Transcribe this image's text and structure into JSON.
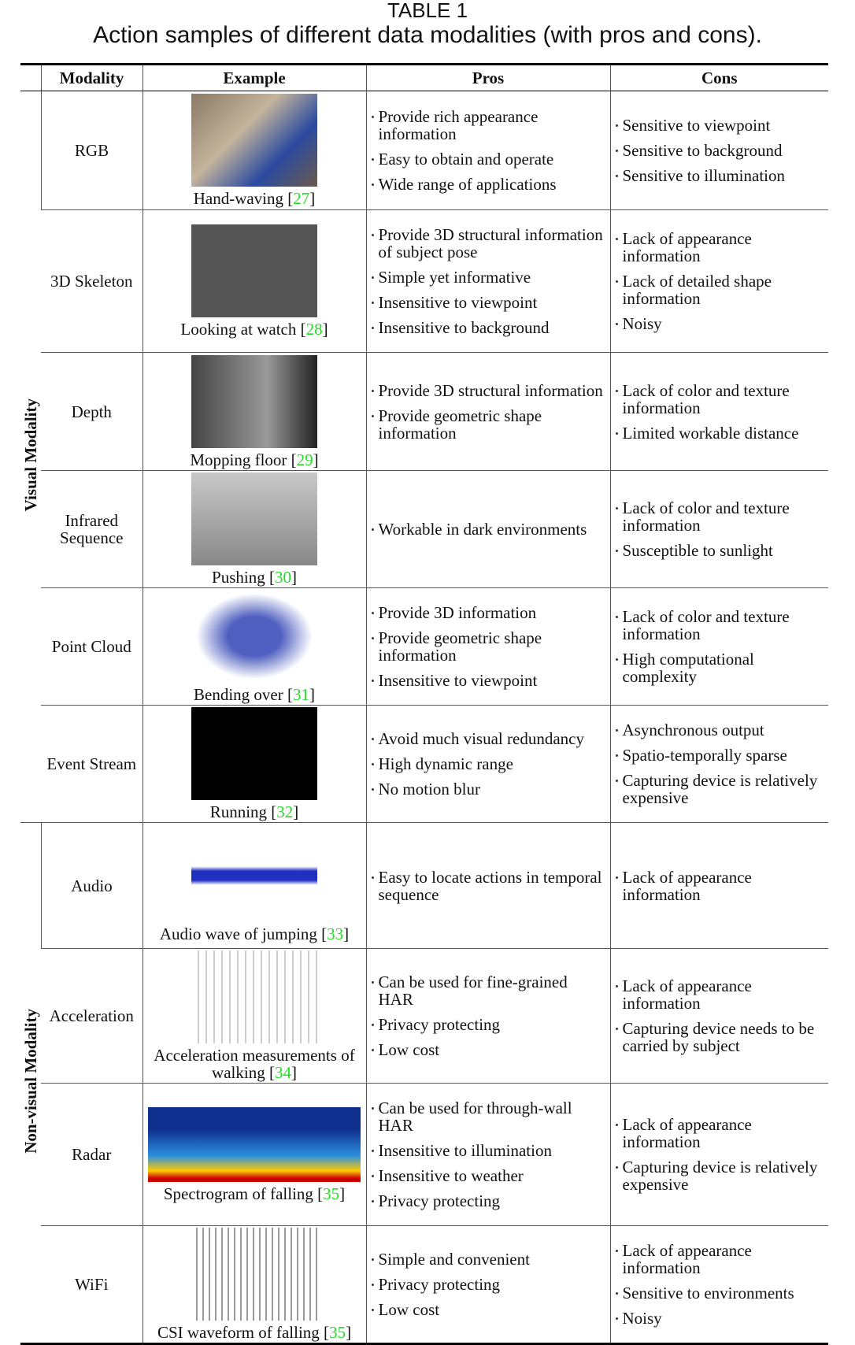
{
  "header": {
    "label": "TABLE 1",
    "title": "Action samples of different data modalities (with pros and cons)."
  },
  "table": {
    "columns": [
      "Modality",
      "Example",
      "Pros",
      "Cons"
    ],
    "groups": [
      {
        "label": "Visual Modality",
        "rows": [
          {
            "modality": "RGB",
            "caption": [
              "Hand-waving [",
              "27",
              "]"
            ],
            "pros": [
              "Provide rich appearance information",
              "Easy to obtain and operate",
              "Wide range of applications"
            ],
            "cons": [
              "Sensitive to viewpoint",
              "Sensitive to background",
              "Sensitive to illumination"
            ]
          },
          {
            "modality": "3D Skeleton",
            "caption": [
              "Looking at watch [",
              "28",
              "]"
            ],
            "pros": [
              "Provide 3D structural information of subject pose",
              "Simple yet informative",
              "Insensitive to viewpoint",
              "Insensitive to background"
            ],
            "cons": [
              "Lack of appearance information",
              "Lack of detailed shape information",
              "Noisy"
            ]
          },
          {
            "modality": "Depth",
            "caption": [
              "Mopping floor [",
              "29",
              "]"
            ],
            "pros": [
              "Provide 3D structural information",
              "Provide geometric shape information"
            ],
            "cons": [
              "Lack of color and texture information",
              "Limited workable distance"
            ]
          },
          {
            "modality": "Infrared Sequence",
            "caption": [
              "Pushing [",
              "30",
              "]"
            ],
            "pros": [
              "Workable in dark environments"
            ],
            "cons": [
              "Lack of color and texture information",
              "Susceptible to sunlight"
            ]
          },
          {
            "modality": "Point Cloud",
            "caption": [
              "Bending over [",
              "31",
              "]"
            ],
            "pros": [
              "Provide 3D information",
              "Provide geometric shape information",
              "Insensitive to viewpoint"
            ],
            "cons": [
              "Lack of color and texture information",
              "High computational complexity"
            ]
          },
          {
            "modality": "Event Stream",
            "caption": [
              "Running [",
              "32",
              "]"
            ],
            "pros": [
              "Avoid much visual redundancy",
              "High dynamic range",
              "No motion blur"
            ],
            "cons": [
              "Asynchronous output",
              "Spatio-temporally sparse",
              "Capturing device is relatively expensive"
            ]
          }
        ]
      },
      {
        "label": "Non-visual Modality",
        "rows": [
          {
            "modality": "Audio",
            "caption": [
              "Audio wave of jumping [",
              "33",
              "]"
            ],
            "pros": [
              "Easy to locate actions in temporal sequence"
            ],
            "cons": [
              "Lack of appearance information"
            ]
          },
          {
            "modality": "Acceleration",
            "caption": [
              "Acceleration measurements of walking [",
              "34",
              "]"
            ],
            "pros": [
              "Can be used for fine-grained HAR",
              "Privacy protecting",
              "Low cost"
            ],
            "cons": [
              "Lack of appearance information",
              "Capturing device needs to be carried by subject"
            ]
          },
          {
            "modality": "Radar",
            "caption": [
              "Spectrogram of falling [",
              "35",
              "]"
            ],
            "pros": [
              "Can be used for through-wall HAR",
              "Insensitive to illumination",
              "Insensitive to weather",
              "Privacy protecting"
            ],
            "cons": [
              "Lack of appearance information",
              "Capturing device is relatively expensive"
            ]
          },
          {
            "modality": "WiFi",
            "caption": [
              "CSI waveform of falling [",
              "35",
              "]"
            ],
            "pros": [
              "Simple and convenient",
              "Privacy protecting",
              "Low cost"
            ],
            "cons": [
              "Lack of appearance information",
              "Sensitive to environments",
              "Noisy"
            ]
          }
        ]
      }
    ]
  }
}
